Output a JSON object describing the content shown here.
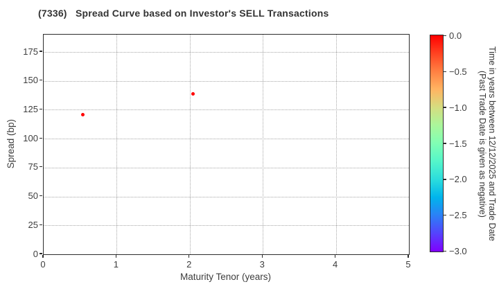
{
  "chart_data": {
    "type": "scatter",
    "title": "(7336)   Spread Curve based on Investor's SELL Transactions",
    "xlabel": "Maturity Tenor (years)",
    "ylabel": "Spread (bp)",
    "xlim": [
      0,
      5
    ],
    "ylim": [
      0,
      190
    ],
    "xticks": [
      0,
      1,
      2,
      3,
      4,
      5
    ],
    "yticks": [
      0,
      25,
      50,
      75,
      100,
      125,
      150,
      175
    ],
    "grid": {
      "style": "dotted",
      "color": "#a6a6a6",
      "on": true
    },
    "points": [
      {
        "x": 0.54,
        "y": 121,
        "time_years": 0.0,
        "color": "#ff0000"
      },
      {
        "x": 2.04,
        "y": 139,
        "time_years": 0.0,
        "color": "#ff0000"
      }
    ],
    "colorbar": {
      "label_line1": "Time in years between 12/12/2025 and Trade Date",
      "label_line2": "(Past Trade Date is given as negative)",
      "vmax": 0.0,
      "vmin": -3.0,
      "tick_labels": [
        "0.0",
        "−0.5",
        "−1.0",
        "−1.5",
        "−2.0",
        "−2.5",
        "−3.0"
      ],
      "colormap": "rainbow",
      "gradient_stops": [
        {
          "pos": "0%",
          "color": "#ff0000"
        },
        {
          "pos": "8.3%",
          "color": "#ff4221"
        },
        {
          "pos": "16.7%",
          "color": "#ff8042"
        },
        {
          "pos": "25%",
          "color": "#ffb462"
        },
        {
          "pos": "33.3%",
          "color": "#d5dd80"
        },
        {
          "pos": "41.7%",
          "color": "#aaf69b"
        },
        {
          "pos": "50%",
          "color": "#80ffb4"
        },
        {
          "pos": "58.3%",
          "color": "#55f6ca"
        },
        {
          "pos": "66.7%",
          "color": "#2bdddd"
        },
        {
          "pos": "75%",
          "color": "#00b4ec"
        },
        {
          "pos": "83.3%",
          "color": "#2b80f6"
        },
        {
          "pos": "91.7%",
          "color": "#5542fd"
        },
        {
          "pos": "100%",
          "color": "#8000ff"
        }
      ]
    }
  }
}
